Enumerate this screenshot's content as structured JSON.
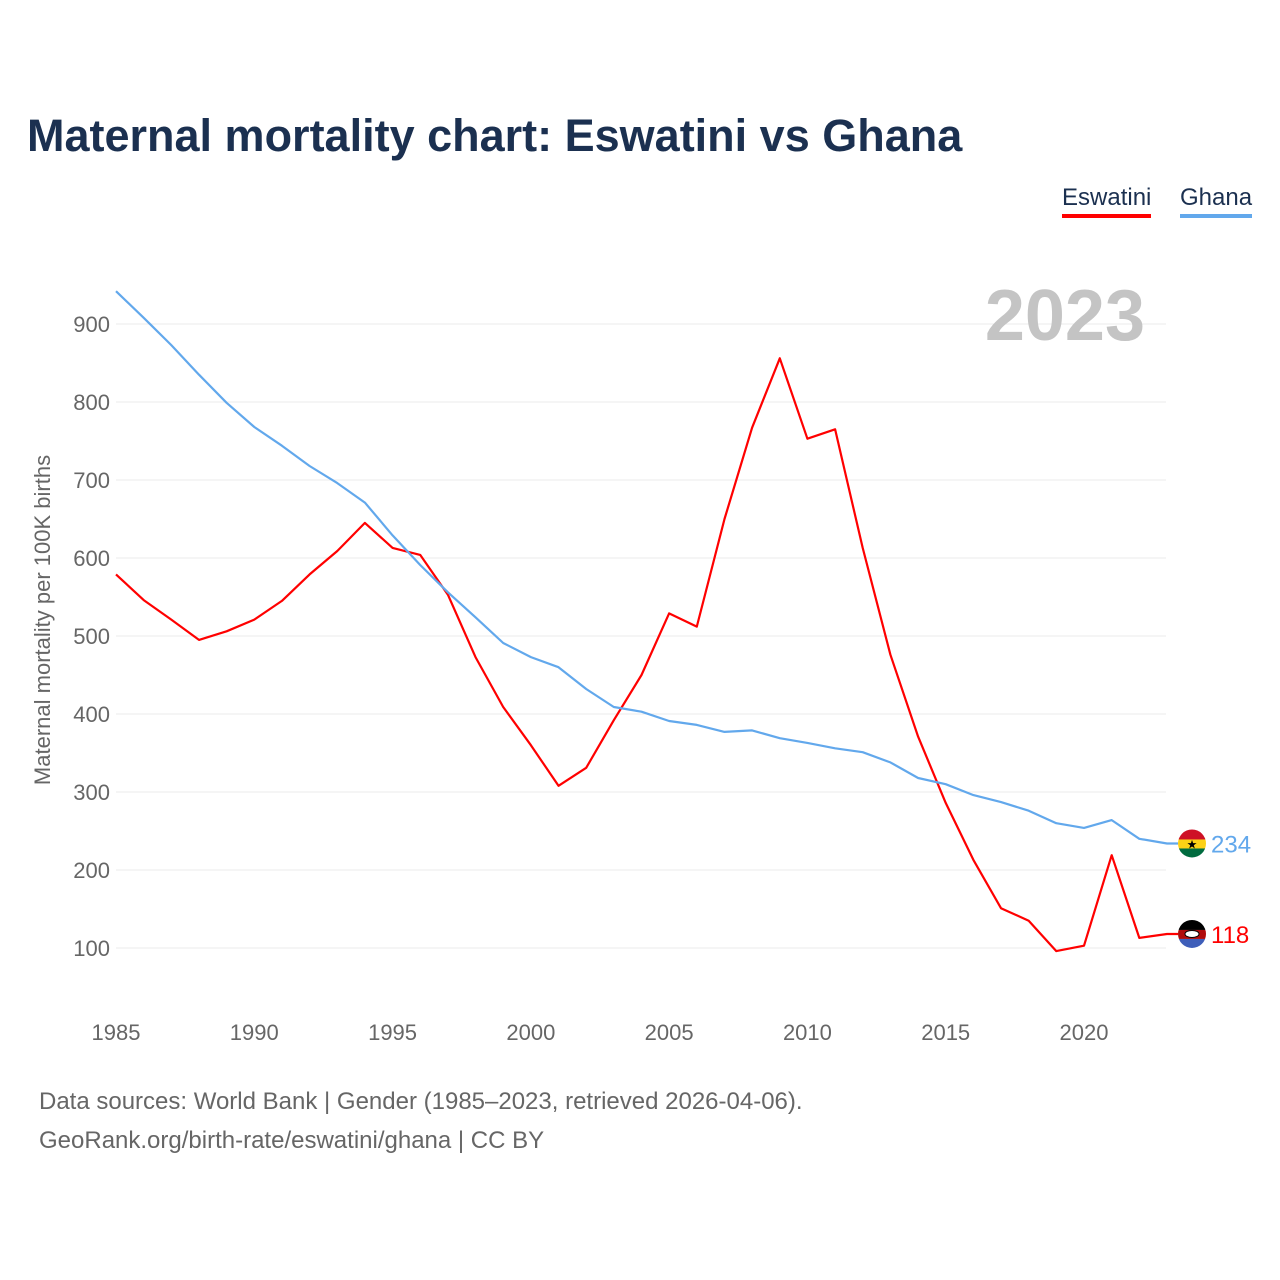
{
  "chart_data": {
    "type": "line",
    "title": "Maternal mortality chart: Eswatini vs Ghana",
    "ylabel": "Maternal mortality per 100K births",
    "xlabel": "",
    "year_label": "2023",
    "xlim": [
      1985,
      2023
    ],
    "ylim": [
      0,
      1000
    ],
    "xticks": [
      1985,
      1990,
      1995,
      2000,
      2005,
      2010,
      2015,
      2020
    ],
    "yticks": [
      100,
      200,
      300,
      400,
      500,
      600,
      700,
      800,
      900
    ],
    "grid": true,
    "legend_position": "top-right",
    "x": [
      1985,
      1986,
      1987,
      1988,
      1989,
      1990,
      1991,
      1992,
      1993,
      1994,
      1995,
      1996,
      1997,
      1998,
      1999,
      2000,
      2001,
      2002,
      2003,
      2004,
      2005,
      2006,
      2007,
      2008,
      2009,
      2010,
      2011,
      2012,
      2013,
      2014,
      2015,
      2016,
      2017,
      2018,
      2019,
      2020,
      2021,
      2022,
      2023
    ],
    "series": [
      {
        "name": "Eswatini",
        "color": "#ff0000",
        "end_label": "118",
        "values": [
          579,
          546,
          521,
          495,
          506,
          521,
          545,
          579,
          609,
          645,
          613,
          604,
          553,
          473,
          409,
          360,
          308,
          331,
          392,
          450,
          529,
          512,
          650,
          767,
          856,
          753,
          765,
          613,
          476,
          371,
          286,
          213,
          151,
          135,
          96,
          103,
          219,
          113,
          118
        ]
      },
      {
        "name": "Ghana",
        "color": "#62a8ec",
        "end_label": "234",
        "values": [
          942,
          908,
          873,
          835,
          799,
          768,
          744,
          718,
          696,
          671,
          629,
          591,
          556,
          524,
          491,
          473,
          460,
          432,
          409,
          403,
          391,
          386,
          377,
          379,
          369,
          363,
          356,
          351,
          338,
          318,
          310,
          296,
          287,
          276,
          260,
          254,
          264,
          240,
          234
        ]
      }
    ]
  },
  "footer": {
    "line1": "Data sources: World Bank | Gender (1985–2023, retrieved 2026-04-06).",
    "line2": "GeoRank.org/birth-rate/eswatini/ghana | CC BY"
  }
}
